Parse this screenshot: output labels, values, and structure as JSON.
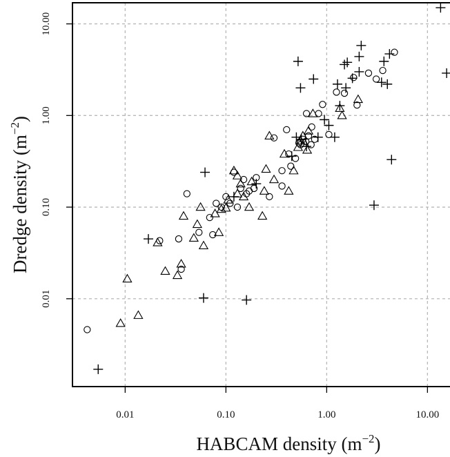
{
  "chart_data": {
    "type": "scatter",
    "xscale": "log",
    "yscale": "log",
    "xlim": [
      0.003,
      17
    ],
    "ylim": [
      0.0011,
      17
    ],
    "grid": true,
    "xlabel": {
      "main": "HABCAM density (m",
      "sup": "−2",
      "tail": ")"
    },
    "ylabel": {
      "main": "Dredge density (m",
      "sup": "−2",
      "tail": ")"
    },
    "xticks": [
      {
        "value": 0.01,
        "label": "0.01"
      },
      {
        "value": 0.1,
        "label": "0.10"
      },
      {
        "value": 1,
        "label": "1.00"
      },
      {
        "value": 10,
        "label": "10.00"
      }
    ],
    "yticks": [
      {
        "value": 0.01,
        "label": "0.01"
      },
      {
        "value": 0.1,
        "label": "0.10"
      },
      {
        "value": 1,
        "label": "1.00"
      },
      {
        "value": 10,
        "label": "10.00"
      }
    ],
    "series": [
      {
        "marker": "circle",
        "points": [
          [
            0.0042,
            0.0046
          ],
          [
            0.022,
            0.043
          ],
          [
            0.034,
            0.045
          ],
          [
            0.036,
            0.021
          ],
          [
            0.041,
            0.14
          ],
          [
            0.054,
            0.053
          ],
          [
            0.069,
            0.077
          ],
          [
            0.074,
            0.05
          ],
          [
            0.08,
            0.11
          ],
          [
            0.09,
            0.1
          ],
          [
            0.1,
            0.13
          ],
          [
            0.11,
            0.11
          ],
          [
            0.13,
            0.1
          ],
          [
            0.14,
            0.16
          ],
          [
            0.15,
            0.2
          ],
          [
            0.17,
            0.15
          ],
          [
            0.19,
            0.16
          ],
          [
            0.2,
            0.21
          ],
          [
            0.27,
            0.13
          ],
          [
            0.3,
            0.57
          ],
          [
            0.36,
            0.25
          ],
          [
            0.4,
            0.7
          ],
          [
            0.42,
            0.38
          ],
          [
            0.44,
            0.28
          ],
          [
            0.49,
            0.34
          ],
          [
            0.53,
            0.5
          ],
          [
            0.58,
            0.55
          ],
          [
            0.62,
            0.52
          ],
          [
            0.66,
            0.6
          ],
          [
            0.71,
            0.75
          ],
          [
            0.76,
            0.55
          ],
          [
            0.83,
            1.05
          ],
          [
            0.91,
            1.32
          ],
          [
            1.05,
            0.62
          ],
          [
            1.25,
            1.8
          ],
          [
            1.5,
            1.75
          ],
          [
            1.85,
            2.6
          ],
          [
            2.0,
            1.3
          ],
          [
            2.6,
            2.9
          ],
          [
            3.1,
            2.5
          ],
          [
            3.6,
            3.1
          ],
          [
            4.7,
            4.9
          ],
          [
            0.63,
            1.05
          ],
          [
            0.12,
            0.24
          ],
          [
            0.55,
            0.48
          ],
          [
            0.36,
            0.17
          ],
          [
            0.16,
            0.14
          ],
          [
            0.7,
            0.48
          ]
        ]
      },
      {
        "marker": "triangle",
        "points": [
          [
            0.009,
            0.0054
          ],
          [
            0.0105,
            0.0165
          ],
          [
            0.0135,
            0.0066
          ],
          [
            0.021,
            0.041
          ],
          [
            0.025,
            0.02
          ],
          [
            0.033,
            0.018
          ],
          [
            0.036,
            0.024
          ],
          [
            0.038,
            0.08
          ],
          [
            0.048,
            0.046
          ],
          [
            0.052,
            0.065
          ],
          [
            0.056,
            0.1
          ],
          [
            0.06,
            0.038
          ],
          [
            0.078,
            0.085
          ],
          [
            0.085,
            0.053
          ],
          [
            0.09,
            0.095
          ],
          [
            0.1,
            0.098
          ],
          [
            0.105,
            0.12
          ],
          [
            0.12,
            0.25
          ],
          [
            0.13,
            0.14
          ],
          [
            0.14,
            0.18
          ],
          [
            0.15,
            0.13
          ],
          [
            0.17,
            0.1
          ],
          [
            0.18,
            0.19
          ],
          [
            0.23,
            0.08
          ],
          [
            0.24,
            0.15
          ],
          [
            0.25,
            0.26
          ],
          [
            0.27,
            0.6
          ],
          [
            0.3,
            0.2
          ],
          [
            0.38,
            0.38
          ],
          [
            0.42,
            0.15
          ],
          [
            0.47,
            0.25
          ],
          [
            0.52,
            0.45
          ],
          [
            0.58,
            0.6
          ],
          [
            0.64,
            0.42
          ],
          [
            0.66,
            0.68
          ],
          [
            0.73,
            1.05
          ],
          [
            1.35,
            1.2
          ],
          [
            1.42,
            1.0
          ],
          [
            2.05,
            1.5
          ],
          [
            0.13,
            0.22
          ],
          [
            0.6,
            0.5
          ],
          [
            0.55,
            0.53
          ]
        ]
      },
      {
        "marker": "plus",
        "points": [
          [
            0.0054,
            0.0017
          ],
          [
            0.017,
            0.045
          ],
          [
            0.06,
            0.0102
          ],
          [
            0.062,
            0.24
          ],
          [
            0.16,
            0.0097
          ],
          [
            0.52,
            3.9
          ],
          [
            0.55,
            2.0
          ],
          [
            0.74,
            2.5
          ],
          [
            0.56,
            0.55
          ],
          [
            0.82,
            0.58
          ],
          [
            0.95,
            0.9
          ],
          [
            1.05,
            0.78
          ],
          [
            1.2,
            0.58
          ],
          [
            1.28,
            2.2
          ],
          [
            1.35,
            1.28
          ],
          [
            1.5,
            3.6
          ],
          [
            1.6,
            3.8
          ],
          [
            1.8,
            2.55
          ],
          [
            2.1,
            4.4
          ],
          [
            2.2,
            5.8
          ],
          [
            2.1,
            3.0
          ],
          [
            2.95,
            0.105
          ],
          [
            3.5,
            2.3
          ],
          [
            3.7,
            3.9
          ],
          [
            4.0,
            2.2
          ],
          [
            4.2,
            4.7
          ],
          [
            4.4,
            0.33
          ],
          [
            13.5,
            15.0
          ],
          [
            15.5,
            2.9
          ],
          [
            0.5,
            0.58
          ],
          [
            0.63,
            0.46
          ],
          [
            0.45,
            0.36
          ],
          [
            0.12,
            0.13
          ],
          [
            0.2,
            0.18
          ],
          [
            1.55,
            2.0
          ]
        ]
      }
    ]
  }
}
